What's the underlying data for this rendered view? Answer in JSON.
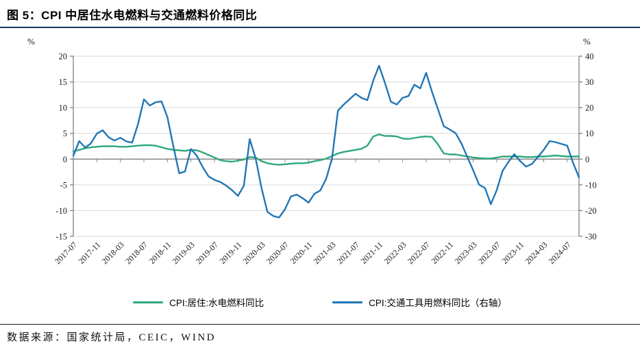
{
  "page": {
    "title": "图 5：CPI 中居住水电燃料与交通燃料价格同比",
    "footer": {
      "source_label": "数据来源：国家统计局，CEIC，WIND"
    }
  },
  "legend": {
    "items": [
      {
        "label": "CPI:居住:水电燃料同比",
        "color": "#2EA878"
      },
      {
        "label": "CPI:交通工具用燃料同比（右轴）",
        "color": "#2176B5"
      }
    ]
  },
  "chart_data": {
    "type": "line",
    "title": "图 5：CPI 中居住水电燃料与交通燃料价格同比",
    "grid": true,
    "grid_color": "#D9D9D9",
    "axis_color": "#7F7F7F",
    "zero_line_color": "#7F7F7F",
    "left_axis": {
      "unit": "%",
      "min": -15,
      "max": 20,
      "step": 5,
      "ticks": [
        20,
        15,
        10,
        5,
        0,
        -5,
        -10,
        -15
      ]
    },
    "right_axis": {
      "unit": "%",
      "min": -30,
      "max": 40,
      "step": 10,
      "ticks": [
        40,
        30,
        20,
        10,
        0,
        -10,
        -20,
        -30
      ]
    },
    "x": {
      "start": "2017-07",
      "end": "2024-09",
      "n_points": 87,
      "tick_interval": 4,
      "tick_labels": [
        "2017-07",
        "2017-11",
        "2018-03",
        "2018-07",
        "2018-11",
        "2019-03",
        "2019-07",
        "2019-11",
        "2020-03",
        "2020-07",
        "2020-11",
        "2021-03",
        "2021-07",
        "2021-11",
        "2022-03",
        "2022-07",
        "2022-11",
        "2023-03",
        "2023-07",
        "2023-11",
        "2024-03",
        "2024-07"
      ]
    },
    "series": [
      {
        "name": "CPI:居住:水电燃料同比",
        "axis": "left",
        "color": "#2EA878",
        "values": [
          1.5,
          1.8,
          2.1,
          2.3,
          2.4,
          2.5,
          2.5,
          2.5,
          2.4,
          2.4,
          2.5,
          2.6,
          2.7,
          2.7,
          2.6,
          2.3,
          2.0,
          1.8,
          1.7,
          1.6,
          1.8,
          1.7,
          1.3,
          0.8,
          0.3,
          -0.2,
          -0.4,
          -0.5,
          -0.3,
          -0.1,
          0.4,
          0.3,
          -0.4,
          -0.8,
          -1.0,
          -1.1,
          -1.0,
          -0.9,
          -0.8,
          -0.8,
          -0.7,
          -0.4,
          -0.2,
          0.1,
          0.6,
          1.1,
          1.4,
          1.6,
          1.8,
          2.0,
          2.6,
          4.4,
          4.8,
          4.5,
          4.5,
          4.4,
          4.0,
          3.9,
          4.1,
          4.3,
          4.4,
          4.3,
          2.9,
          1.1,
          0.9,
          0.9,
          0.7,
          0.5,
          0.3,
          0.2,
          0.1,
          0.1,
          0.3,
          0.5,
          0.5,
          0.5,
          0.5,
          0.4,
          0.4,
          0.5,
          0.5,
          0.6,
          0.7,
          0.6,
          0.5,
          0.5,
          0.5
        ]
      },
      {
        "name": "CPI:交通工具用燃料同比（右轴）",
        "axis": "right",
        "color": "#2176B5",
        "values": [
          1.3,
          7.0,
          4.5,
          6.1,
          9.9,
          11.2,
          8.5,
          7.2,
          8.3,
          6.9,
          6.4,
          13.6,
          23.2,
          20.8,
          22.1,
          22.4,
          16.3,
          5.1,
          -5.5,
          -4.8,
          3.9,
          1.3,
          -3.1,
          -6.7,
          -8.1,
          -8.9,
          -10.3,
          -12.1,
          -14.3,
          -10.3,
          7.8,
          0.4,
          -11.2,
          -20.5,
          -22.1,
          -22.7,
          -19.5,
          -14.5,
          -13.8,
          -15.2,
          -16.9,
          -13.5,
          -12.2,
          -7.7,
          0.3,
          18.9,
          21.2,
          23.3,
          25.4,
          23.8,
          22.9,
          30.5,
          36.3,
          29.6,
          22.3,
          21.2,
          23.8,
          24.5,
          28.9,
          27.5,
          33.5,
          26.1,
          19.5,
          12.8,
          11.5,
          10.1,
          6.1,
          0.8,
          -4.3,
          -9.9,
          -11.2,
          -17.5,
          -12.1,
          -4.6,
          -1.1,
          1.9,
          -0.8,
          -2.9,
          -1.9,
          0.8,
          3.6,
          7.0,
          6.6,
          5.9,
          5.2,
          -1.5,
          -7.1
        ]
      }
    ]
  }
}
